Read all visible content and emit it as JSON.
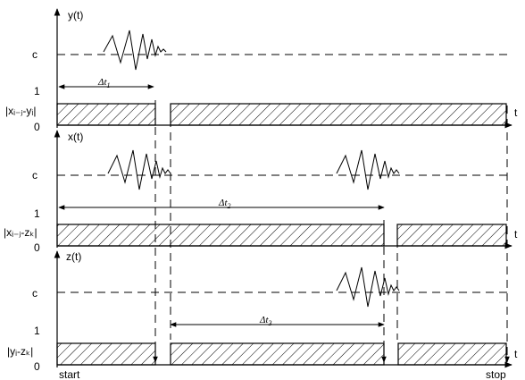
{
  "panels": [
    {
      "y_axis": "y(t)",
      "c_label": "c",
      "one_label": "1",
      "zero_label": "0",
      "t_label": "t",
      "signal_label": "|xᵢ₋ⱼ-yᵢ|",
      "delta": "Δt",
      "delta_sub": "1"
    },
    {
      "y_axis": "x(t)",
      "c_label": "c",
      "one_label": "1",
      "zero_label": "0",
      "t_label": "t",
      "signal_label": "|xᵢ₋ⱼ-zₖ|",
      "delta": "Δt",
      "delta_sub": "2"
    },
    {
      "y_axis": "z(t)",
      "c_label": "c",
      "one_label": "1",
      "zero_label": "0",
      "t_label": "t",
      "signal_label": "|yᵢ-zₖ|",
      "delta": "Δt",
      "delta_sub": "3"
    }
  ],
  "start_label": "start",
  "stop_label": "stop"
}
